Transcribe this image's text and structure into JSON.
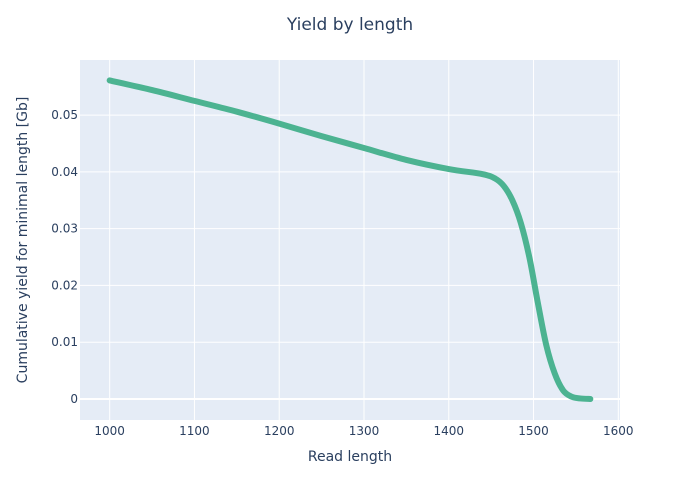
{
  "chart_data": {
    "type": "line",
    "title": "Yield by length",
    "xlabel": "Read length",
    "ylabel": "Cumulative yield for minimal length [Gb]",
    "xlim": [
      965,
      1602
    ],
    "ylim": [
      -0.0037,
      0.0597
    ],
    "x_ticks": [
      1000,
      1100,
      1200,
      1300,
      1400,
      1500,
      1600
    ],
    "x_tick_labels": [
      "1000",
      "1100",
      "1200",
      "1300",
      "1400",
      "1500",
      "1600"
    ],
    "y_ticks": [
      0,
      0.01,
      0.02,
      0.03,
      0.04,
      0.05
    ],
    "y_tick_labels": [
      "0",
      "0.01",
      "0.02",
      "0.03",
      "0.04",
      "0.05"
    ],
    "grid": true,
    "series": [
      {
        "color": "#4cb391",
        "x": [
          1000,
          1050,
          1100,
          1150,
          1200,
          1250,
          1300,
          1350,
          1400,
          1440,
          1455,
          1465,
          1475,
          1485,
          1495,
          1505,
          1515,
          1525,
          1535,
          1545,
          1555,
          1567
        ],
        "y": [
          0.0561,
          0.0544,
          0.0525,
          0.0506,
          0.0485,
          0.0463,
          0.0442,
          0.0421,
          0.0405,
          0.0396,
          0.0388,
          0.0375,
          0.035,
          0.031,
          0.025,
          0.017,
          0.0095,
          0.0045,
          0.0015,
          0.0004,
          0.0001,
          0.0
        ]
      }
    ]
  }
}
